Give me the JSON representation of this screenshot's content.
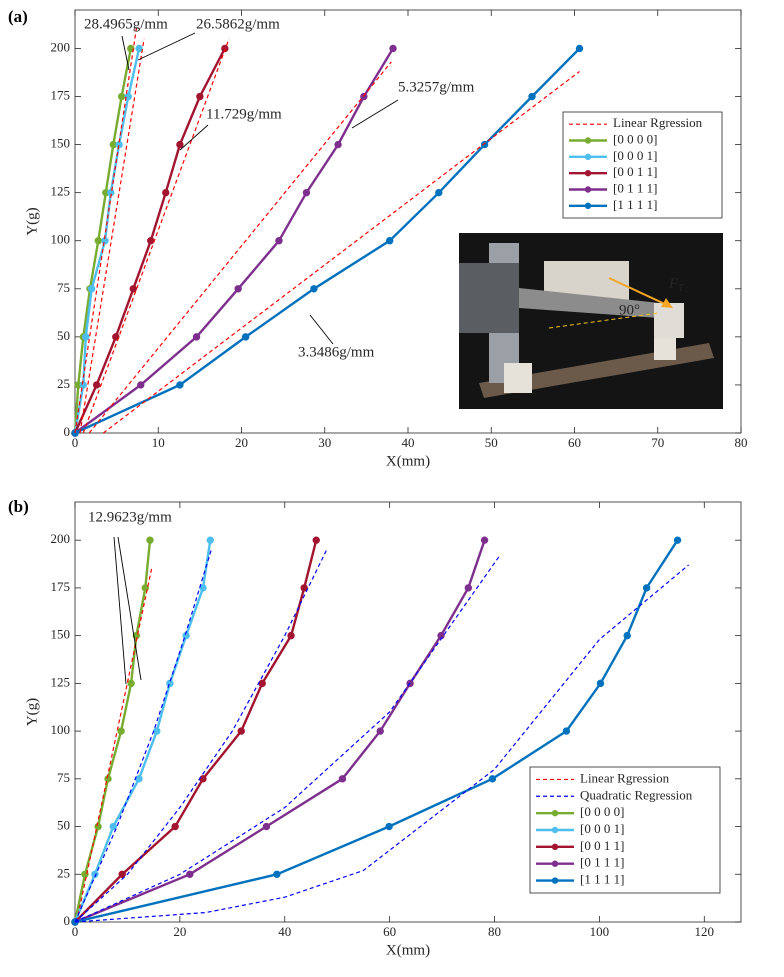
{
  "chart_data": [
    {
      "type": "line",
      "panel": "(a)",
      "xlabel": "X(mm)",
      "ylabel": "Y(g)",
      "xlim": [
        0,
        80
      ],
      "ylim": [
        0,
        220
      ],
      "xticks": [
        0,
        10,
        20,
        30,
        40,
        50,
        60,
        70,
        80
      ],
      "yticks": [
        0,
        25,
        50,
        75,
        100,
        125,
        150,
        175,
        200
      ],
      "legend": "upper right",
      "series": [
        {
          "name": "[0 0 0 0]",
          "color": "#77ac30",
          "x": [
            0,
            0.4,
            1.0,
            1.8,
            2.8,
            3.7,
            4.6,
            5.6,
            6.7
          ],
          "values": [
            0,
            25,
            50,
            75,
            100,
            125,
            150,
            175,
            200
          ]
        },
        {
          "name": "[0 0 0 1]",
          "color": "#4dbeee",
          "x": [
            0,
            1.0,
            1.3,
            2.0,
            3.6,
            4.3,
            5.3,
            6.4,
            7.7
          ],
          "values": [
            0,
            25,
            50,
            75,
            100,
            125,
            150,
            175,
            200
          ]
        },
        {
          "name": "[0 0 1 1]",
          "color": "#a2142f",
          "x": [
            0,
            2.6,
            4.9,
            7.0,
            9.1,
            10.9,
            12.6,
            15.0,
            18.0
          ],
          "values": [
            0,
            25,
            50,
            75,
            100,
            125,
            150,
            175,
            200
          ]
        },
        {
          "name": "[0 1 1 1]",
          "color": "#7e2f8e",
          "x": [
            0,
            7.9,
            14.6,
            19.6,
            24.5,
            27.8,
            31.6,
            34.7,
            38.2
          ],
          "values": [
            0,
            25,
            50,
            75,
            100,
            125,
            150,
            175,
            200
          ]
        },
        {
          "name": "[1 1 1 1]",
          "color": "#0072bd",
          "x": [
            0,
            12.6,
            20.5,
            28.7,
            37.8,
            43.7,
            49.2,
            54.9,
            60.6
          ],
          "values": [
            0,
            25,
            50,
            75,
            100,
            125,
            150,
            175,
            200
          ]
        }
      ],
      "fits": [
        {
          "name": "Linear Rgression",
          "color": "#ff0000",
          "dash": "4,3",
          "lines": [
            {
              "x": [
                0,
                7.4
              ],
              "values": [
                0,
                211
              ]
            },
            {
              "x": [
                0.6,
                8.3
              ],
              "values": [
                0,
                205
              ]
            },
            {
              "x": [
                1.0,
                18.5
              ],
              "values": [
                0,
                205
              ]
            },
            {
              "x": [
                1.7,
                38.0
              ],
              "values": [
                0,
                193
              ]
            },
            {
              "x": [
                3.4,
                60.6
              ],
              "values": [
                0,
                188
              ]
            }
          ]
        }
      ],
      "annotations": [
        {
          "text": "28.4965g/mm",
          "color": "#77ac30"
        },
        {
          "text": "26.5862g/mm",
          "color": "#4dbeee"
        },
        {
          "text": "11.729g/mm",
          "color": "#a2142f"
        },
        {
          "text": "5.3257g/mm",
          "color": "#7e2f8e"
        },
        {
          "text": "3.3486g/mm",
          "color": "#0072bd"
        }
      ],
      "inset": {
        "angle_label": "90°",
        "force_label": "F",
        "force_subscript": "T"
      }
    },
    {
      "type": "line",
      "panel": "(b)",
      "xlabel": "X(mm)",
      "ylabel": "Y(g)",
      "xlim": [
        0,
        127
      ],
      "ylim": [
        0,
        220
      ],
      "xticks": [
        0,
        20,
        40,
        60,
        80,
        100,
        120
      ],
      "yticks": [
        0,
        25,
        50,
        75,
        100,
        125,
        150,
        175,
        200
      ],
      "legend": "lower right",
      "series": [
        {
          "name": "[0 0 0 0]",
          "color": "#77ac30",
          "x": [
            0,
            1.9,
            4.4,
            6.3,
            8.8,
            10.7,
            11.7,
            13.4,
            14.3
          ],
          "values": [
            0,
            25,
            50,
            75,
            100,
            125,
            150,
            175,
            200
          ]
        },
        {
          "name": "[0 0 0 1]",
          "color": "#4dbeee",
          "x": [
            0,
            3.8,
            7.3,
            12.2,
            15.6,
            18.1,
            21.2,
            24.4,
            25.8
          ],
          "values": [
            0,
            25,
            50,
            75,
            100,
            125,
            150,
            175,
            200
          ]
        },
        {
          "name": "[0 0 1 1]",
          "color": "#a2142f",
          "x": [
            0,
            9.0,
            19.1,
            24.4,
            31.7,
            35.7,
            41.2,
            43.7,
            46.0
          ],
          "values": [
            0,
            25,
            50,
            75,
            100,
            125,
            150,
            175,
            200
          ]
        },
        {
          "name": "[0 1 1 1]",
          "color": "#7e2f8e",
          "x": [
            0,
            21.9,
            36.5,
            51.0,
            58.2,
            63.9,
            69.8,
            75.0,
            78.1
          ],
          "values": [
            0,
            25,
            50,
            75,
            100,
            125,
            150,
            175,
            200
          ]
        },
        {
          "name": "[1 1 1 1]",
          "color": "#0072bd",
          "x": [
            0,
            38.5,
            59.9,
            79.6,
            93.7,
            100.2,
            105.3,
            109.0,
            114.9
          ],
          "values": [
            0,
            25,
            50,
            75,
            100,
            125,
            150,
            175,
            200
          ]
        }
      ],
      "fits": [
        {
          "name": "Linear Rgression",
          "color": "#ff0000",
          "dash": "4,3",
          "lines": [
            {
              "x": [
                0.3,
                14.6
              ],
              "values": [
                0,
                185
              ]
            }
          ]
        },
        {
          "name": "Quadratic Regression",
          "color": "#0000ff",
          "dash": "4,3",
          "lines": [
            {
              "x": [
                0,
                8,
                15,
                21,
                26
              ],
              "values": [
                0,
                50,
                100,
                150,
                195
              ]
            },
            {
              "x": [
                0,
                10,
                20,
                30,
                40,
                48
              ],
              "values": [
                0,
                25,
                60,
                100,
                150,
                195
              ]
            },
            {
              "x": [
                0,
                20,
                40,
                60,
                81
              ],
              "values": [
                0,
                25,
                60,
                110,
                192
              ]
            },
            {
              "x": [
                0,
                10,
                25,
                40,
                55,
                80,
                100,
                117
              ],
              "values": [
                0,
                2,
                5,
                13,
                27,
                80,
                148,
                187
              ]
            }
          ]
        }
      ],
      "annotations": [
        {
          "text": "12.9623g/mm",
          "color": "#77ac30"
        }
      ]
    }
  ]
}
